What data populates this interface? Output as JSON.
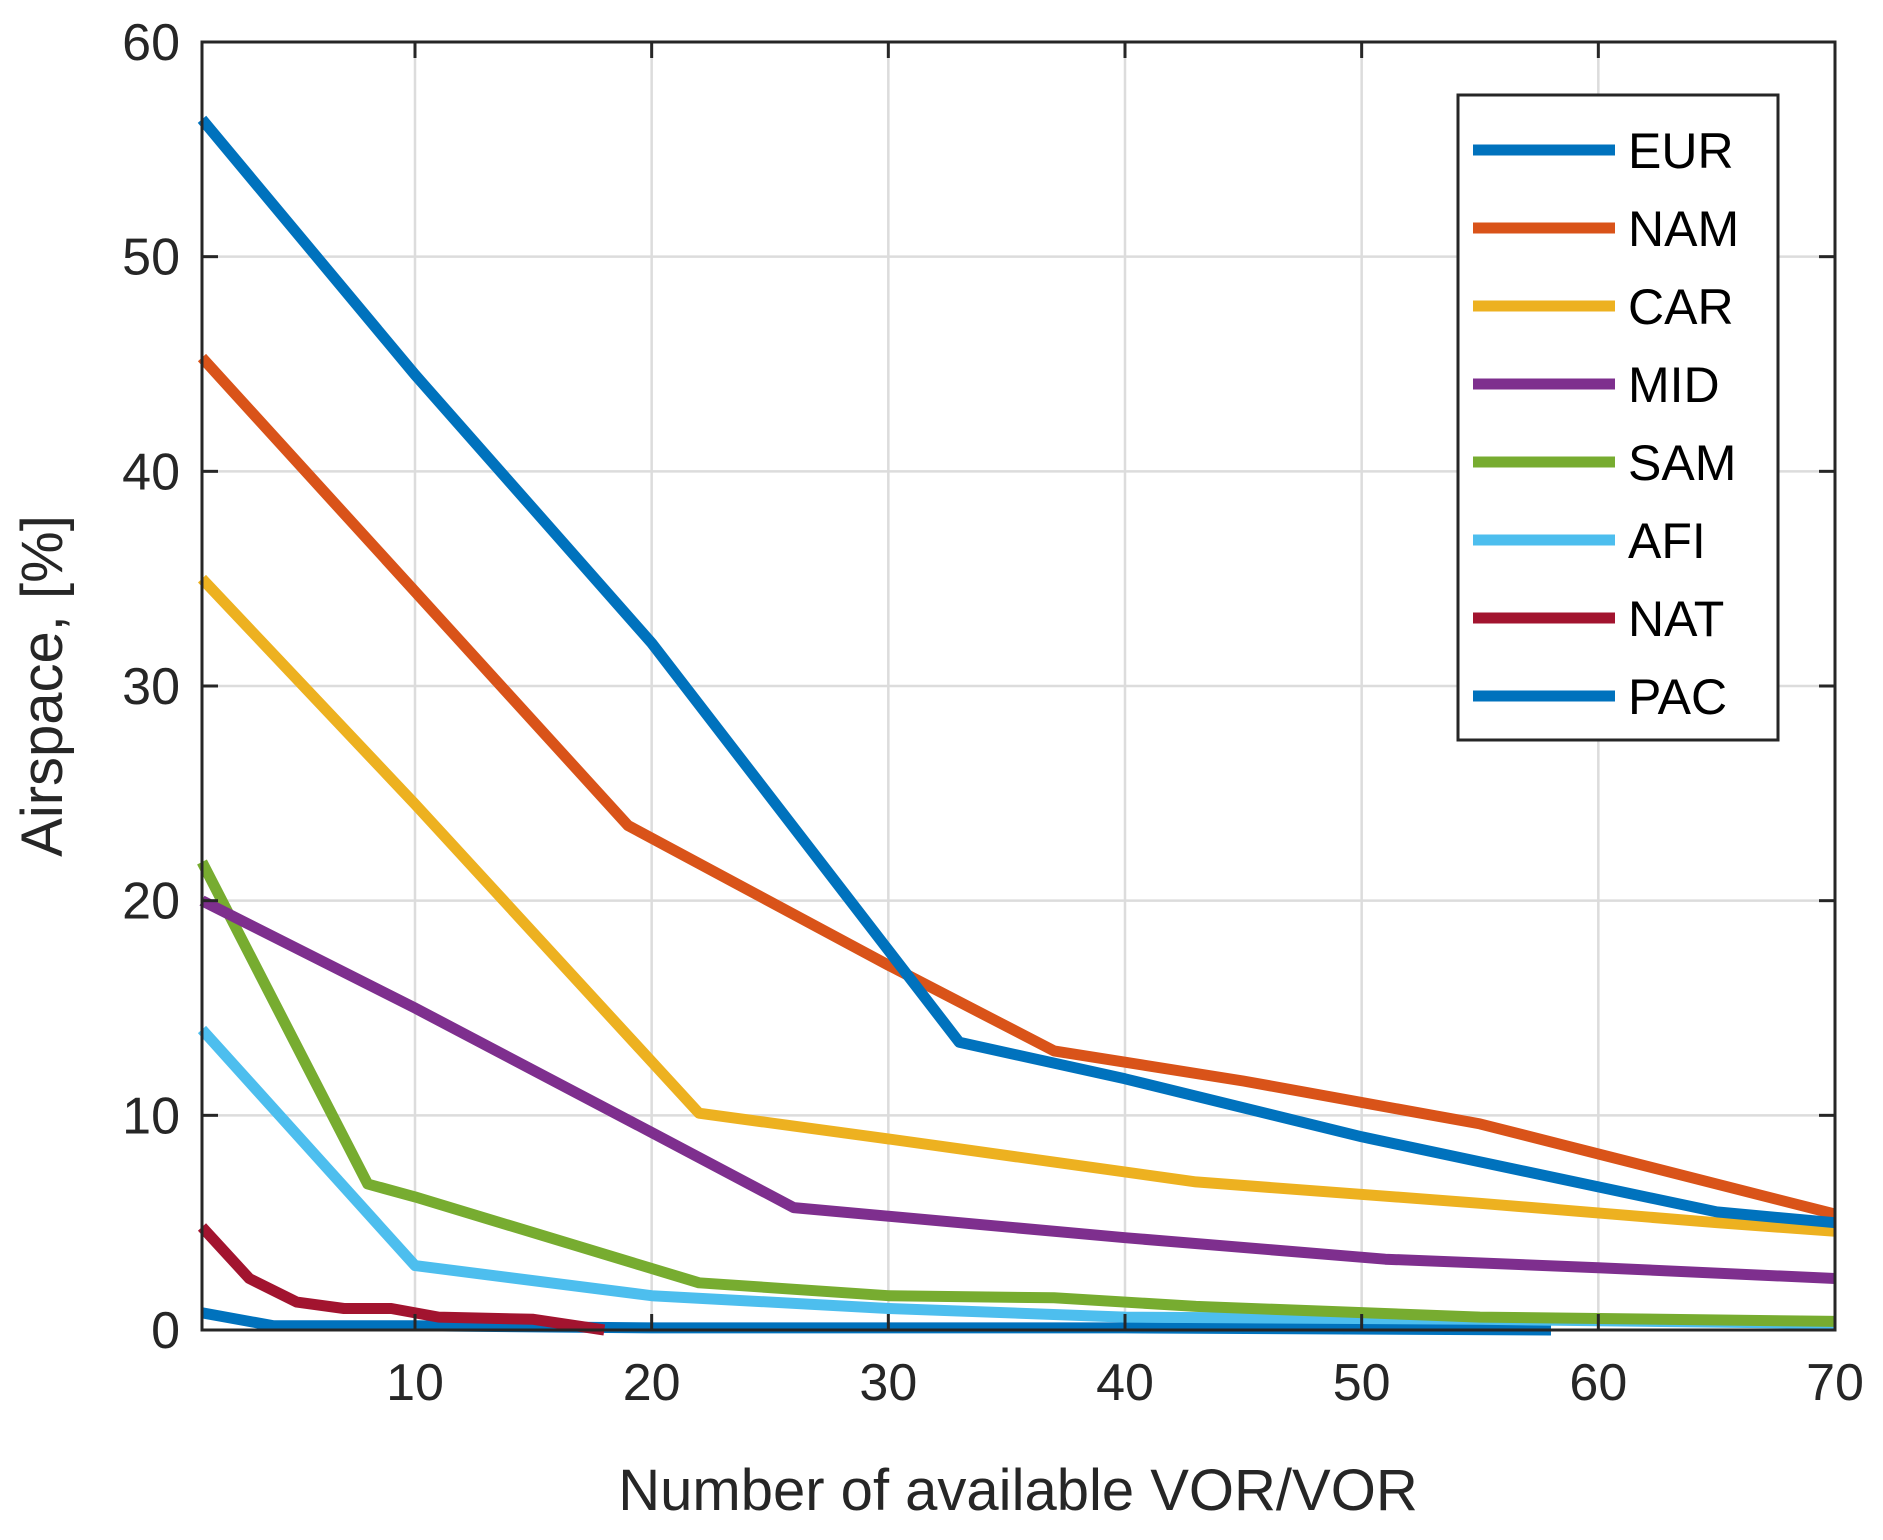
{
  "chart_data": {
    "type": "line",
    "title": "",
    "xlabel": "Number of available VOR/VOR",
    "ylabel": "Airspace, [%]",
    "xlim": [
      1,
      70
    ],
    "ylim": [
      0,
      60
    ],
    "xticks": [
      10,
      20,
      30,
      40,
      50,
      60,
      70
    ],
    "yticks": [
      0,
      10,
      20,
      30,
      40,
      50,
      60
    ],
    "grid": true,
    "legend_position": "top-right",
    "series": [
      {
        "name": "EUR",
        "color": "#0072BD",
        "x": [
          1,
          10,
          20,
          33,
          40,
          50,
          65,
          70
        ],
        "y": [
          56.4,
          44.5,
          32.0,
          13.4,
          11.7,
          9.0,
          5.5,
          5.0
        ]
      },
      {
        "name": "NAM",
        "color": "#D95319",
        "x": [
          1,
          10,
          19,
          30,
          37,
          45,
          55,
          70
        ],
        "y": [
          45.3,
          34.4,
          23.5,
          17.0,
          13.0,
          11.6,
          9.6,
          5.4
        ]
      },
      {
        "name": "CAR",
        "color": "#EDB120",
        "x": [
          1,
          10,
          22,
          30,
          43,
          55,
          65,
          70
        ],
        "y": [
          35.0,
          24.5,
          10.1,
          8.9,
          6.9,
          5.9,
          5.0,
          4.6
        ]
      },
      {
        "name": "MID",
        "color": "#7E2F8E",
        "x": [
          1,
          10,
          20,
          26,
          40,
          51,
          60,
          70
        ],
        "y": [
          20.0,
          15.0,
          9.2,
          5.7,
          4.3,
          3.3,
          2.9,
          2.4
        ]
      },
      {
        "name": "SAM",
        "color": "#77AC30",
        "x": [
          1,
          8,
          10,
          22,
          30,
          37,
          43,
          55,
          70
        ],
        "y": [
          21.8,
          6.8,
          6.2,
          2.2,
          1.6,
          1.5,
          1.1,
          0.6,
          0.4
        ]
      },
      {
        "name": "AFI",
        "color": "#4DBEEE",
        "x": [
          1,
          10,
          20,
          30,
          40,
          55,
          70
        ],
        "y": [
          14.0,
          3.0,
          1.6,
          1.0,
          0.6,
          0.5,
          0.3
        ]
      },
      {
        "name": "NAT",
        "color": "#A2142F",
        "x": [
          1,
          3,
          5,
          7,
          9,
          11,
          15,
          18
        ],
        "y": [
          4.8,
          2.4,
          1.3,
          1.0,
          1.0,
          0.6,
          0.5,
          0.0
        ]
      },
      {
        "name": "PAC",
        "color": "#0072BD",
        "x": [
          1,
          4,
          10,
          20,
          40,
          58
        ],
        "y": [
          0.8,
          0.2,
          0.2,
          0.1,
          0.1,
          0.0
        ]
      }
    ]
  }
}
